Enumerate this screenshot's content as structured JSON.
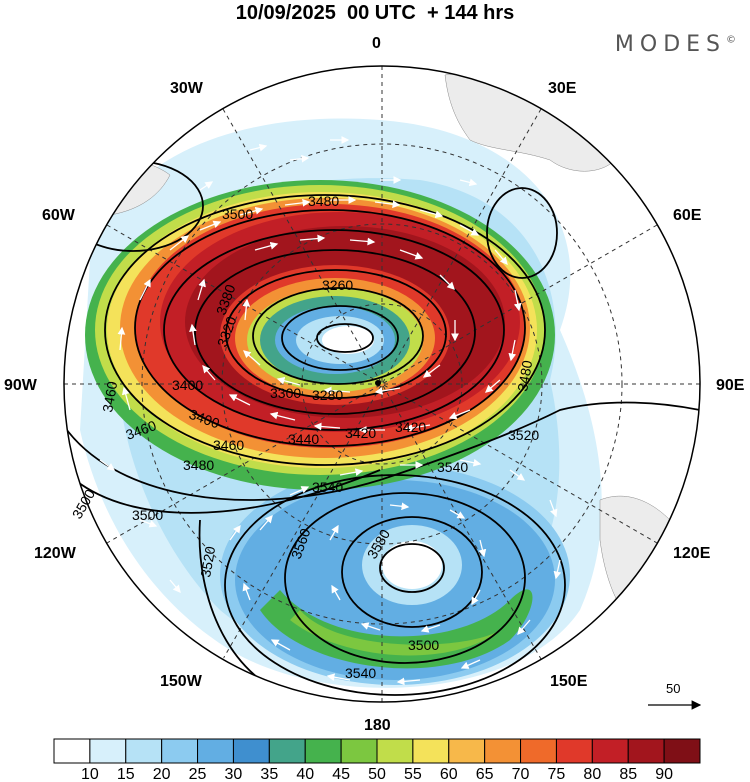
{
  "title": "10/09/2025  00 UTC  + 144 hrs",
  "brand": "MODES",
  "brand_mark": "©",
  "longitude_labels": {
    "lon_0": "0",
    "lon_30e": "30E",
    "lon_60e": "60E",
    "lon_90e": "90E",
    "lon_120e": "120E",
    "lon_150e": "150E",
    "lon_180": "180",
    "lon_150w": "150W",
    "lon_120w": "120W",
    "lon_90w": "90W",
    "lon_60w": "60W",
    "lon_30w": "30W"
  },
  "contour_labels": [
    "3480",
    "3500",
    "3540",
    "3260",
    "3320",
    "3300",
    "3280",
    "3400",
    "3420",
    "3440",
    "3460",
    "3460",
    "3460",
    "3480",
    "3500",
    "3560",
    "3580",
    "3520",
    "3540",
    "3520",
    "3480",
    "3500",
    "3540",
    "3500",
    "3400",
    "3420",
    "3380"
  ],
  "vector_scale": {
    "value": "50"
  },
  "colorbar": {
    "labels": [
      "10",
      "15",
      "20",
      "25",
      "30",
      "35",
      "40",
      "45",
      "50",
      "55",
      "60",
      "65",
      "70",
      "75",
      "80",
      "85",
      "90"
    ],
    "colors": [
      "#ffffff",
      "#d7f0fb",
      "#b6e2f6",
      "#8ccbf0",
      "#62aee3",
      "#3f8fcf",
      "#43a48a",
      "#45b24d",
      "#7cc740",
      "#c1dd4a",
      "#f4e25a",
      "#f7b84a",
      "#f39135",
      "#ef6a2a",
      "#e0392a",
      "#c21f26",
      "#a2151d",
      "#7f0f16"
    ]
  },
  "colors": {
    "land": "#ececec",
    "background": "#ffffff",
    "contour": "#000000",
    "vectors": "#ffffff"
  }
}
